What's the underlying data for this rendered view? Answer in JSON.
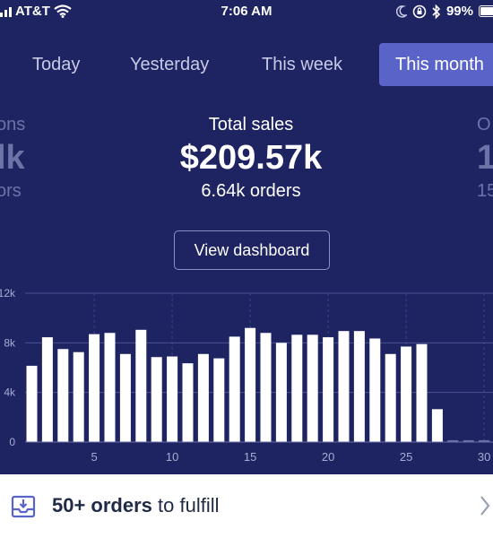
{
  "status_bar": {
    "carrier": "AT&T",
    "time": "7:06 AM",
    "battery": "99%",
    "icons": [
      "signal-icon",
      "wifi-icon",
      "moon-icon",
      "lock-rotation-icon",
      "bluetooth-icon",
      "battery-icon"
    ]
  },
  "tabs": [
    {
      "label": "Today",
      "active": false
    },
    {
      "label": "Yesterday",
      "active": false
    },
    {
      "label": "This week",
      "active": false
    },
    {
      "label": "This month",
      "active": true
    }
  ],
  "stats": {
    "left": {
      "label": "ons",
      "value": "lk",
      "sub": "ors"
    },
    "center": {
      "label": "Total sales",
      "value": "$209.57k",
      "sub": "6.64k orders"
    },
    "right": {
      "label": "O",
      "value": "1",
      "sub": "15"
    }
  },
  "dashboard_button": {
    "label": "View dashboard"
  },
  "chart_data": {
    "type": "bar",
    "title": "",
    "xlabel": "",
    "ylabel": "",
    "y_tick_labels": [
      "0",
      "4k",
      "8k",
      "12k"
    ],
    "x_tick_labels": [
      "5",
      "10",
      "15",
      "20",
      "25",
      "30"
    ],
    "x_ticks": [
      5,
      10,
      15,
      20,
      25,
      30
    ],
    "y_ticks": [
      0,
      4000,
      8000,
      12000
    ],
    "ylim": [
      0,
      12000
    ],
    "xlim": [
      1,
      30
    ],
    "grid": true,
    "bar_color": "#ffffff",
    "x": [
      1,
      2,
      3,
      4,
      5,
      6,
      7,
      8,
      9,
      10,
      11,
      12,
      13,
      14,
      15,
      16,
      17,
      18,
      19,
      20,
      21,
      22,
      23,
      24,
      25,
      26,
      27,
      28,
      29,
      30
    ],
    "values": [
      6150,
      8450,
      7500,
      7250,
      8700,
      8800,
      7100,
      9050,
      6850,
      6900,
      6350,
      7100,
      6750,
      8500,
      9200,
      8800,
      8000,
      8650,
      8650,
      8450,
      8950,
      8950,
      8350,
      7100,
      7700,
      7900,
      2650,
      150,
      150,
      150
    ]
  },
  "fulfill_bar": {
    "count": "50+ orders",
    "text": " to fulfill",
    "icons": [
      "inbox-download-icon",
      "chevron-right-icon"
    ]
  },
  "colors": {
    "background": "#1e2461",
    "active_tab": "#5a64c8",
    "bar": "#ffffff",
    "footer": "#ffffff"
  }
}
